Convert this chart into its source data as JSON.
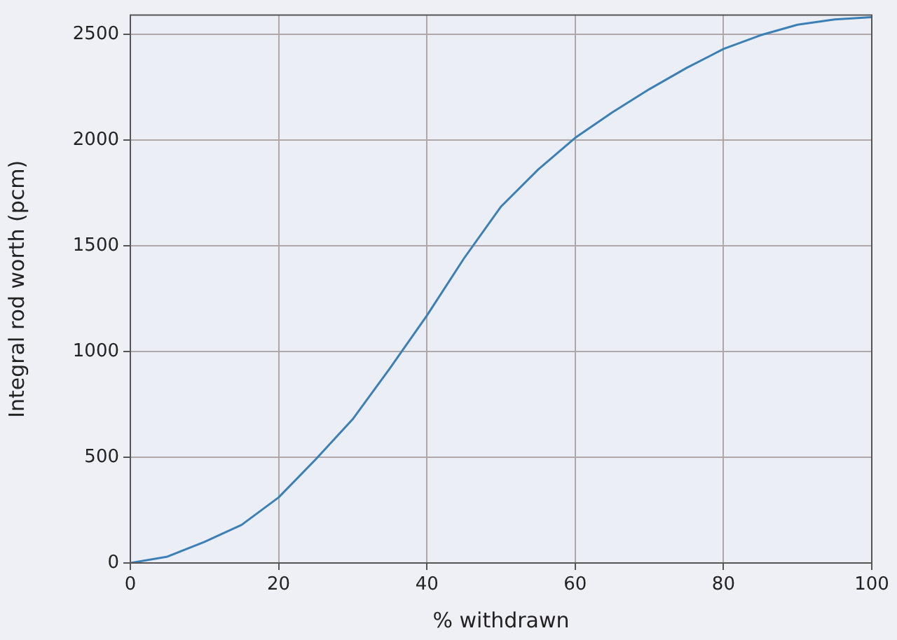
{
  "chart_data": {
    "type": "line",
    "xlabel": "% withdrawn",
    "ylabel": "Integral rod worth (pcm)",
    "x": [
      0,
      5,
      10,
      15,
      20,
      25,
      30,
      35,
      40,
      45,
      50,
      55,
      60,
      65,
      70,
      75,
      80,
      85,
      90,
      95,
      100
    ],
    "series": [
      {
        "color": "#3a80b6",
        "values": [
          0,
          30,
          100,
          180,
          310,
          490,
          680,
          920,
          1170,
          1440,
          1685,
          1860,
          2010,
          2130,
          2240,
          2340,
          2430,
          2495,
          2545,
          2570,
          2580
        ]
      }
    ],
    "xlim": [
      0,
      100
    ],
    "ylim": [
      0,
      2590
    ],
    "xticks": [
      0,
      20,
      40,
      60,
      80,
      100
    ],
    "yticks": [
      0,
      500,
      1000,
      1500,
      2000,
      2500
    ],
    "grid": true,
    "legend": false,
    "marker": "none",
    "line_style": "solid"
  }
}
